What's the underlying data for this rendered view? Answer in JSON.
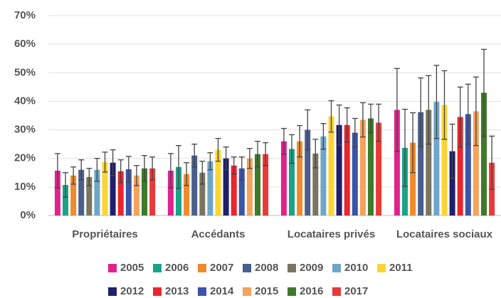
{
  "chart_data": {
    "type": "bar",
    "categories": [
      "Propriétaires",
      "Accédants",
      "Locataires privés",
      "Locataires sociaux"
    ],
    "ylim": [
      0,
      70
    ],
    "yticks": [
      {
        "value": 0,
        "label": "0%"
      },
      {
        "value": 10,
        "label": "10%"
      },
      {
        "value": 20,
        "label": "20%"
      },
      {
        "value": 30,
        "label": "30%"
      },
      {
        "value": 40,
        "label": "40%"
      },
      {
        "value": 50,
        "label": "50%"
      },
      {
        "value": 60,
        "label": "60%"
      },
      {
        "value": 70,
        "label": "70%"
      }
    ],
    "grid": true,
    "legend": "bottom",
    "series": [
      {
        "name": "2005",
        "color": "#e0238c",
        "values": [
          15.7,
          15.7,
          26,
          37
        ],
        "errors": [
          6,
          6,
          4.5,
          14.5
        ]
      },
      {
        "name": "2006",
        "color": "#1aa386",
        "values": [
          10.7,
          17,
          23.3,
          23.7
        ],
        "errors": [
          4.3,
          7.5,
          5,
          13.5
        ]
      },
      {
        "name": "2007",
        "color": "#f08a2c",
        "values": [
          14,
          14.5,
          26,
          25.5
        ],
        "errors": [
          3,
          4,
          5.5,
          10.5
        ]
      },
      {
        "name": "2008",
        "color": "#4a5e8c",
        "values": [
          16,
          21,
          30,
          36.2
        ],
        "errors": [
          3.5,
          4,
          7,
          12
        ]
      },
      {
        "name": "2009",
        "color": "#7a7560",
        "values": [
          13.5,
          15,
          21.7,
          37
        ],
        "errors": [
          3,
          4,
          5,
          12
        ]
      },
      {
        "name": "2010",
        "color": "#6ea6c8",
        "values": [
          16,
          19,
          27.7,
          39.8
        ],
        "errors": [
          4,
          3,
          4.5,
          12.8
        ]
      },
      {
        "name": "2011",
        "color": "#fcd433",
        "values": [
          18.7,
          23,
          34.7,
          38.7
        ],
        "errors": [
          3.5,
          4,
          5.5,
          12
        ]
      },
      {
        "name": "2012",
        "color": "#1f1f6b",
        "values": [
          18.5,
          20,
          31.7,
          22.5
        ],
        "errors": [
          4.5,
          4,
          7,
          9.5
        ]
      },
      {
        "name": "2013",
        "color": "#e8262c",
        "values": [
          15.5,
          17.5,
          31.7,
          34.5
        ],
        "errors": [
          4,
          3,
          6,
          10.5
        ]
      },
      {
        "name": "2014",
        "color": "#3a55a8",
        "values": [
          16.2,
          16.5,
          29,
          35.5
        ],
        "errors": [
          4.5,
          4,
          5,
          10.5
        ]
      },
      {
        "name": "2015",
        "color": "#f5a25a",
        "values": [
          14,
          20,
          33.5,
          36.5
        ],
        "errors": [
          3.5,
          3.5,
          6,
          12
        ]
      },
      {
        "name": "2016",
        "color": "#3d7a2a",
        "values": [
          16.5,
          21.5,
          34,
          43
        ],
        "errors": [
          4.5,
          4.5,
          5,
          15.2
        ]
      },
      {
        "name": "2017",
        "color": "#e83a3a",
        "values": [
          16.5,
          21.5,
          32.5,
          18.5
        ],
        "errors": [
          4,
          4,
          6.5,
          9.3
        ]
      }
    ]
  }
}
